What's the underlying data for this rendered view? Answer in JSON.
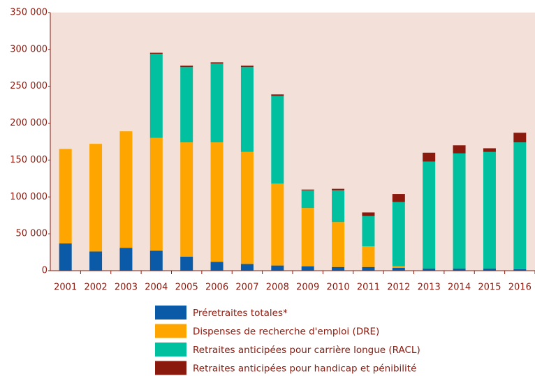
{
  "chart_data": {
    "type": "stacked_bar",
    "categories": [
      "2001",
      "2002",
      "2003",
      "2004",
      "2005",
      "2006",
      "2007",
      "2008",
      "2009",
      "2010",
      "2011",
      "2012",
      "2013",
      "2014",
      "2015",
      "2016"
    ],
    "series": [
      {
        "name": "Préretraites totales*",
        "color": "#0a5aa8",
        "values": [
          37000,
          26000,
          31000,
          27000,
          19000,
          12000,
          9000,
          7000,
          6000,
          5000,
          5000,
          4000,
          3000,
          3000,
          3000,
          2000
        ]
      },
      {
        "name": "Dispenses de recherche d'emploi (DRE)",
        "color": "#ffa500",
        "values": [
          128000,
          146000,
          158000,
          153000,
          155000,
          162000,
          152000,
          111000,
          79000,
          61000,
          28000,
          2000,
          0,
          0,
          0,
          0
        ]
      },
      {
        "name": "Retraites anticipées pour carrière longue (RACL)",
        "color": "#00c0a0",
        "values": [
          0,
          0,
          0,
          114000,
          102000,
          107000,
          115000,
          119000,
          24000,
          43000,
          41000,
          87000,
          145000,
          156000,
          158000,
          172000
        ]
      },
      {
        "name": "Retraites anticipées pour handicap et pénibilité",
        "color": "#8b1a0e",
        "values": [
          0,
          0,
          0,
          1500,
          2000,
          1500,
          2000,
          2000,
          1000,
          2000,
          5000,
          11000,
          12000,
          11000,
          5000,
          13000
        ]
      }
    ],
    "ylim": [
      0,
      350000
    ],
    "yticks": [
      0,
      {
        "value": 50000,
        "label": "50 000"
      },
      {
        "value": 100000,
        "label": "100 000"
      },
      {
        "value": 150000,
        "label": "150 000"
      },
      {
        "value": 200000,
        "label": "200 000"
      },
      {
        "value": 250000,
        "label": "250 000"
      },
      {
        "value": 300000,
        "label": "300 000"
      },
      {
        "value": 350000,
        "label": "350 000"
      }
    ],
    "background": "#f2e0d9"
  }
}
